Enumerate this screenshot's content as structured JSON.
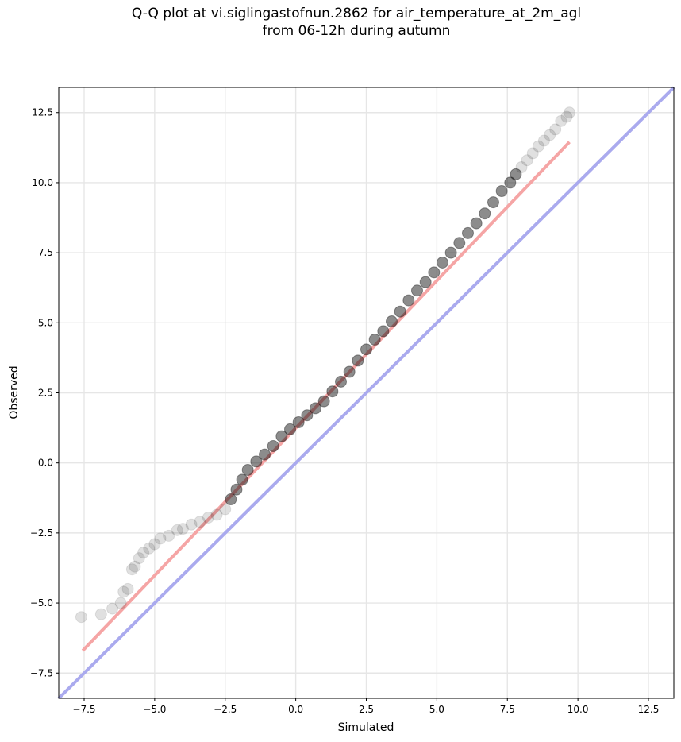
{
  "chart_data": {
    "type": "scatter",
    "title_line1": "Q-Q plot at vi.siglingastofnun.2862 for air_temperature_at_2m_agl",
    "title_line2": "from 06-12h during autumn",
    "xlabel": "Simulated",
    "ylabel": "Observed",
    "xlim": [
      -8.4,
      13.4
    ],
    "ylim": [
      -8.4,
      13.4
    ],
    "grid": true,
    "x_ticks": [
      -7.5,
      -5.0,
      -2.5,
      0.0,
      2.5,
      5.0,
      7.5,
      10.0,
      12.5
    ],
    "y_ticks": [
      -7.5,
      -5.0,
      -2.5,
      0.0,
      2.5,
      5.0,
      7.5,
      10.0,
      12.5
    ],
    "x_tick_labels": [
      "−7.5",
      "−5.0",
      "−2.5",
      "0.0",
      "2.5",
      "5.0",
      "7.5",
      "10.0",
      "12.5"
    ],
    "y_tick_labels": [
      "−7.5",
      "−5.0",
      "−2.5",
      "0.0",
      "2.5",
      "5.0",
      "7.5",
      "10.0",
      "12.5"
    ],
    "identity_line": {
      "x": [
        -8.4,
        13.4
      ],
      "y": [
        -8.4,
        13.4
      ],
      "color": "#aaaaee"
    },
    "fit_line": {
      "x": [
        -7.55,
        9.7
      ],
      "y": [
        -6.7,
        11.45
      ],
      "color": "#f5a5a5"
    },
    "quantile_points": {
      "color": "#000000",
      "x": [
        -7.6,
        -6.9,
        -6.5,
        -6.2,
        -6.1,
        -5.95,
        -5.8,
        -5.7,
        -5.55,
        -5.4,
        -5.2,
        -5.0,
        -4.8,
        -4.5,
        -4.2,
        -4.0,
        -3.7,
        -3.4,
        -3.1,
        -2.8,
        -2.5,
        -2.3,
        -2.1,
        -1.9,
        -1.7,
        -1.4,
        -1.1,
        -0.8,
        -0.5,
        -0.2,
        0.1,
        0.4,
        0.7,
        1.0,
        1.3,
        1.6,
        1.9,
        2.2,
        2.5,
        2.8,
        3.1,
        3.4,
        3.7,
        4.0,
        4.3,
        4.6,
        4.9,
        5.2,
        5.5,
        5.8,
        6.1,
        6.4,
        6.7,
        7.0,
        7.3,
        7.6,
        7.8,
        8.0,
        8.2,
        8.4,
        8.6,
        8.8,
        9.0,
        9.2,
        9.4,
        9.6,
        9.7
      ],
      "y": [
        -5.5,
        -5.4,
        -5.2,
        -5.0,
        -4.6,
        -4.5,
        -3.8,
        -3.7,
        -3.4,
        -3.2,
        -3.05,
        -2.9,
        -2.7,
        -2.6,
        -2.4,
        -2.35,
        -2.2,
        -2.1,
        -1.95,
        -1.85,
        -1.65,
        -1.3,
        -0.95,
        -0.6,
        -0.25,
        0.05,
        0.3,
        0.6,
        0.95,
        1.2,
        1.45,
        1.7,
        1.95,
        2.2,
        2.55,
        2.9,
        3.25,
        3.65,
        4.05,
        4.4,
        4.7,
        5.05,
        5.4,
        5.8,
        6.15,
        6.45,
        6.8,
        7.15,
        7.5,
        7.85,
        8.2,
        8.55,
        8.9,
        9.3,
        9.7,
        10.0,
        10.3,
        10.55,
        10.8,
        11.05,
        11.3,
        11.5,
        11.7,
        11.9,
        12.2,
        12.35,
        12.5
      ]
    }
  }
}
